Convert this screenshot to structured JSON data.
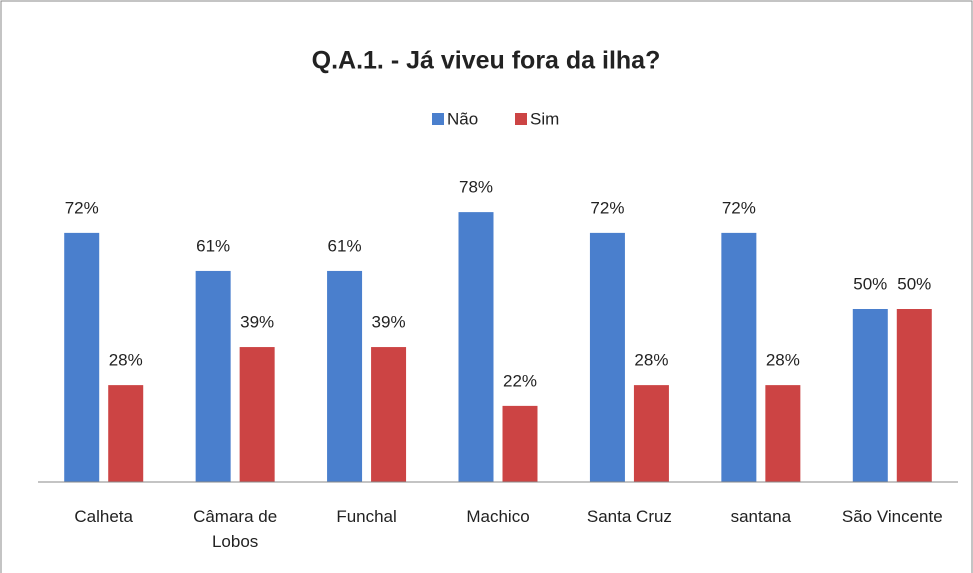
{
  "chart_data": {
    "type": "bar",
    "title": "Q.A.1. - Já viveu fora da ilha?",
    "categories": [
      "Calheta",
      "Câmara de Lobos",
      "Funchal",
      "Machico",
      "Santa Cruz",
      "santana",
      "São Vincente"
    ],
    "series": [
      {
        "name": "Não",
        "color": "#4a7fcd",
        "values": [
          72,
          61,
          61,
          78,
          72,
          72,
          50
        ],
        "value_labels": [
          "72%",
          "61%",
          "61%",
          "78%",
          "72%",
          "72%",
          "50%"
        ]
      },
      {
        "name": "Sim",
        "color": "#cc4444",
        "values": [
          28,
          39,
          39,
          22,
          28,
          28,
          50
        ],
        "value_labels": [
          "28%",
          "39%",
          "39%",
          "22%",
          "28%",
          "28%",
          "50%"
        ]
      }
    ],
    "ylim": [
      0,
      100
    ],
    "legend": "top"
  }
}
